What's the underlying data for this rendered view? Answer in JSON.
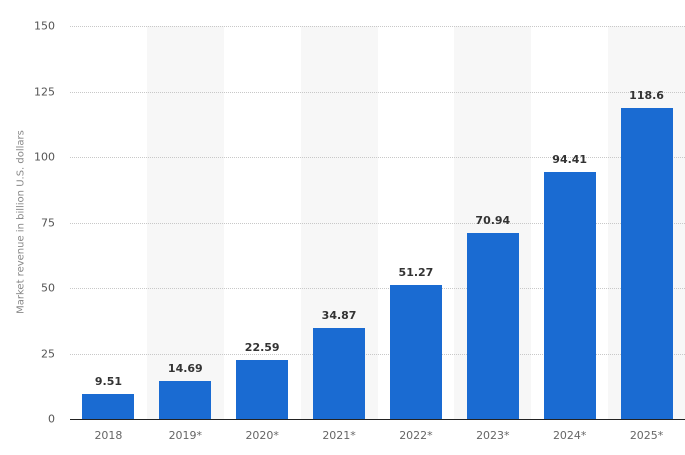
{
  "chart_data": {
    "type": "bar",
    "title": "",
    "xlabel": "",
    "ylabel": "Market revenue in billion U.S. dollars",
    "categories": [
      "2018",
      "2019*",
      "2020*",
      "2021*",
      "2022*",
      "2023*",
      "2024*",
      "2025*"
    ],
    "values": [
      9.51,
      14.69,
      22.59,
      34.87,
      51.27,
      70.94,
      94.41,
      118.6
    ],
    "value_labels": [
      "9.51",
      "14.69",
      "22.59",
      "34.87",
      "51.27",
      "70.94",
      "94.41",
      "118.6"
    ],
    "ylim": [
      0,
      150
    ],
    "yticks": [
      0,
      25,
      50,
      75,
      100,
      125,
      150
    ],
    "grid": true,
    "legend": null,
    "colors": {
      "bar": "#1a6bd2",
      "band": "#f7f7f7",
      "grid": "#c8c8c8"
    }
  }
}
